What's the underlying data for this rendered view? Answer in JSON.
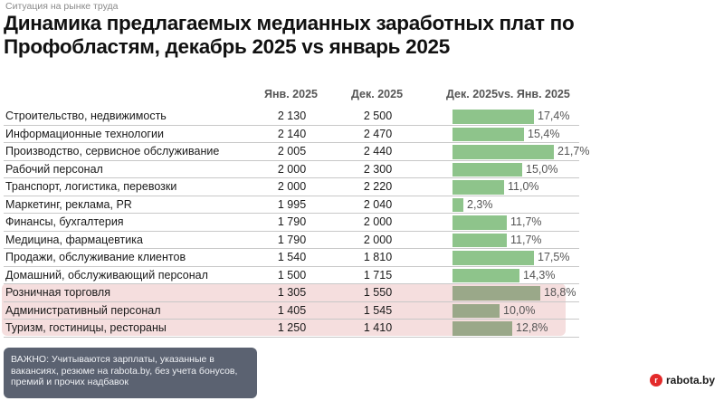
{
  "header": {
    "supertitle": "Ситуация на рынке труда",
    "title": "Динамика предлагаемых медианных заработных плат по Профобластям, декабрь 2025 vs январь 2025"
  },
  "chart_data": {
    "type": "table",
    "title": "Динамика предлагаемых медианных заработных плат по Профобластям, декабрь 2025 vs январь 2025",
    "columns": [
      "Янв. 2025",
      "Дек. 2025",
      "Дек. 2025vs. Янв. 2025"
    ],
    "rows": [
      {
        "category": "Строительство, недвижимость",
        "jan": "2 130",
        "dec": "2 500",
        "change": 17.4,
        "change_label": "17,4%",
        "highlight": false
      },
      {
        "category": "Информационные технологии",
        "jan": "2 140",
        "dec": "2 470",
        "change": 15.4,
        "change_label": "15,4%",
        "highlight": false
      },
      {
        "category": "Производство, сервисное обслуживание",
        "jan": "2 005",
        "dec": "2 440",
        "change": 21.7,
        "change_label": "21,7%",
        "highlight": false
      },
      {
        "category": "Рабочий персонал",
        "jan": "2 000",
        "dec": "2 300",
        "change": 15.0,
        "change_label": "15,0%",
        "highlight": false
      },
      {
        "category": "Транспорт, логистика, перевозки",
        "jan": "2 000",
        "dec": "2 220",
        "change": 11.0,
        "change_label": "11,0%",
        "highlight": false
      },
      {
        "category": "Маркетинг, реклама, PR",
        "jan": "1 995",
        "dec": "2 040",
        "change": 2.3,
        "change_label": "2,3%",
        "highlight": false
      },
      {
        "category": "Финансы, бухгалтерия",
        "jan": "1 790",
        "dec": "2 000",
        "change": 11.7,
        "change_label": "11,7%",
        "highlight": false
      },
      {
        "category": "Медицина, фармацевтика",
        "jan": "1 790",
        "dec": "2 000",
        "change": 11.7,
        "change_label": "11,7%",
        "highlight": false
      },
      {
        "category": "Продажи, обслуживание клиентов",
        "jan": "1 540",
        "dec": "1 810",
        "change": 17.5,
        "change_label": "17,5%",
        "highlight": false
      },
      {
        "category": "Домашний, обслуживающий персонал",
        "jan": "1 500",
        "dec": "1 715",
        "change": 14.3,
        "change_label": "14,3%",
        "highlight": false
      },
      {
        "category": "Розничная торговля",
        "jan": "1 305",
        "dec": "1 550",
        "change": 18.8,
        "change_label": "18,8%",
        "highlight": true
      },
      {
        "category": "Административный персонал",
        "jan": "1 405",
        "dec": "1 545",
        "change": 10.0,
        "change_label": "10,0%",
        "highlight": true
      },
      {
        "category": "Туризм, гостиницы, рестораны",
        "jan": "1 250",
        "dec": "1 410",
        "change": 12.8,
        "change_label": "12,8%",
        "highlight": true
      }
    ],
    "bar_range": [
      0,
      21.7
    ]
  },
  "note": "ВАЖНО: Учитываются зарплаты, указанные в вакансиях, резюме на rabota.by, без учета бонусов, премий и прочих надбавок",
  "brand": {
    "icon": "r",
    "name": "rabota.by"
  },
  "colors": {
    "bar": "#8ec48b",
    "bar_highlight": "#9aa889",
    "highlight_bg": "#f5dede",
    "note_bg": "#5b6271",
    "brand": "#e32a2a"
  }
}
